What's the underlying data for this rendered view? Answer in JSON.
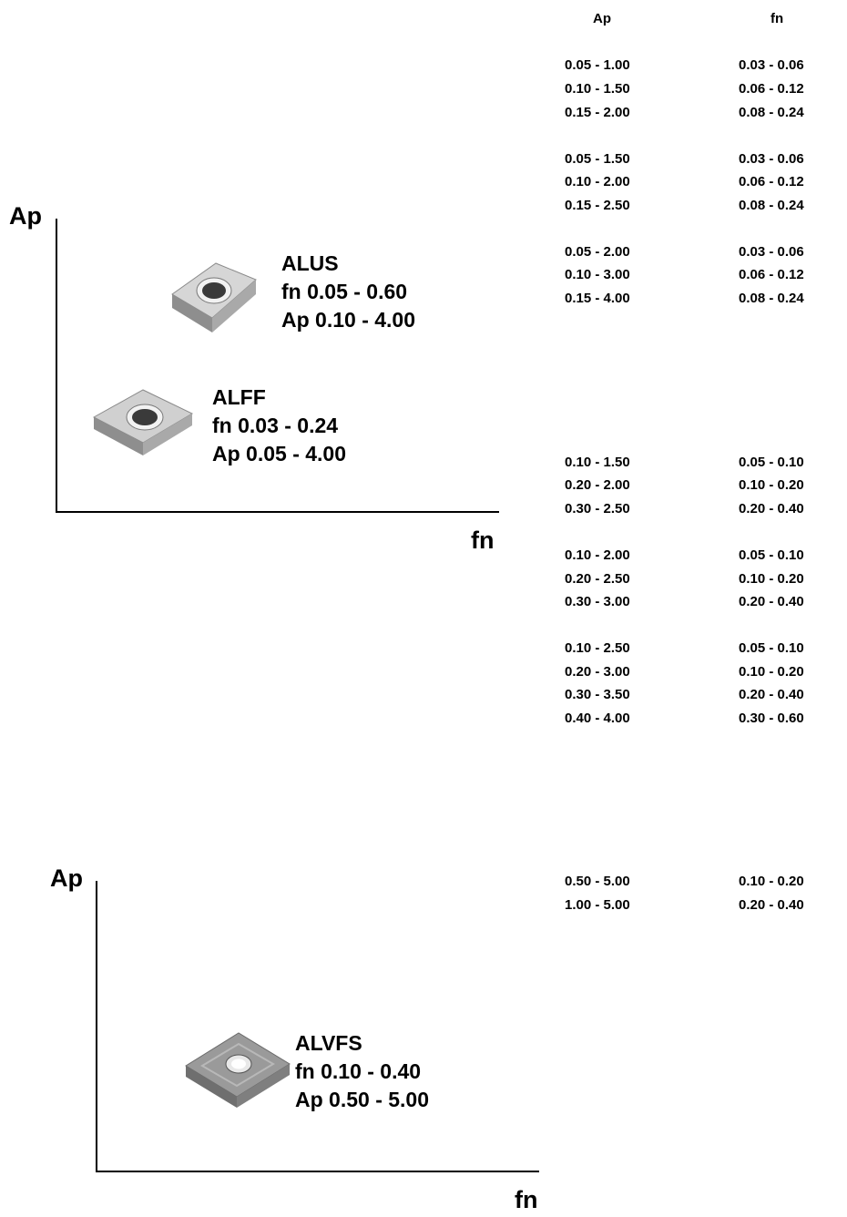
{
  "table": {
    "header_ap": "Ap",
    "header_fn": "fn",
    "rows": [
      {
        "ap": "0.05 - 1.00",
        "fn": "0.03 - 0.06"
      },
      {
        "ap": "0.10 - 1.50",
        "fn": "0.06 - 0.12"
      },
      {
        "ap": "0.15 - 2.00",
        "fn": "0.08 - 0.24"
      },
      {
        "ap": "0.05 - 1.50",
        "fn": "0.03 - 0.06"
      },
      {
        "ap": "0.10 - 2.00",
        "fn": "0.06 - 0.12"
      },
      {
        "ap": "0.15 - 2.50",
        "fn": "0.08 - 0.24"
      },
      {
        "ap": "0.05 - 2.00",
        "fn": "0.03 - 0.06"
      },
      {
        "ap": "0.10 - 3.00",
        "fn": "0.06 - 0.12"
      },
      {
        "ap": "0.15 - 4.00",
        "fn": "0.08 - 0.24"
      },
      {
        "ap": "0.10 - 1.50",
        "fn": "0.05 - 0.10"
      },
      {
        "ap": "0.20 - 2.00",
        "fn": "0.10 - 0.20"
      },
      {
        "ap": "0.30 - 2.50",
        "fn": "0.20 - 0.40"
      },
      {
        "ap": "0.10 - 2.00",
        "fn": "0.05 - 0.10"
      },
      {
        "ap": "0.20 - 2.50",
        "fn": "0.10 - 0.20"
      },
      {
        "ap": "0.30 - 3.00",
        "fn": "0.20 - 0.40"
      },
      {
        "ap": "0.10 - 2.50",
        "fn": "0.05 - 0.10"
      },
      {
        "ap": "0.20 - 3.00",
        "fn": "0.10 - 0.20"
      },
      {
        "ap": "0.30 - 3.50",
        "fn": "0.20 - 0.40"
      },
      {
        "ap": "0.40 - 4.00",
        "fn": "0.30 - 0.60"
      },
      {
        "ap": "0.50 - 5.00",
        "fn": "0.10 - 0.20"
      },
      {
        "ap": "1.00 - 5.00",
        "fn": "0.20 - 0.40"
      }
    ]
  },
  "diagram1": {
    "y_label": "Ap",
    "x_label": "fn",
    "alus": {
      "name": "ALUS",
      "fn": "fn  0.05 - 0.60",
      "ap": "Ap 0.10 - 4.00"
    },
    "alff": {
      "name": "ALFF",
      "fn": "fn  0.03 - 0.24",
      "ap": "Ap 0.05 - 4.00"
    }
  },
  "diagram2": {
    "y_label": "Ap",
    "x_label": "fn",
    "alvfs": {
      "name": "ALVFS",
      "fn": "fn  0.10 - 0.40",
      "ap": "Ap 0.50 - 5.00"
    }
  },
  "colors": {
    "text": "#000000",
    "insert_light": "#c9c9c9",
    "insert_dark": "#7d7d7d",
    "insert_grey": "#8e8e8e"
  }
}
